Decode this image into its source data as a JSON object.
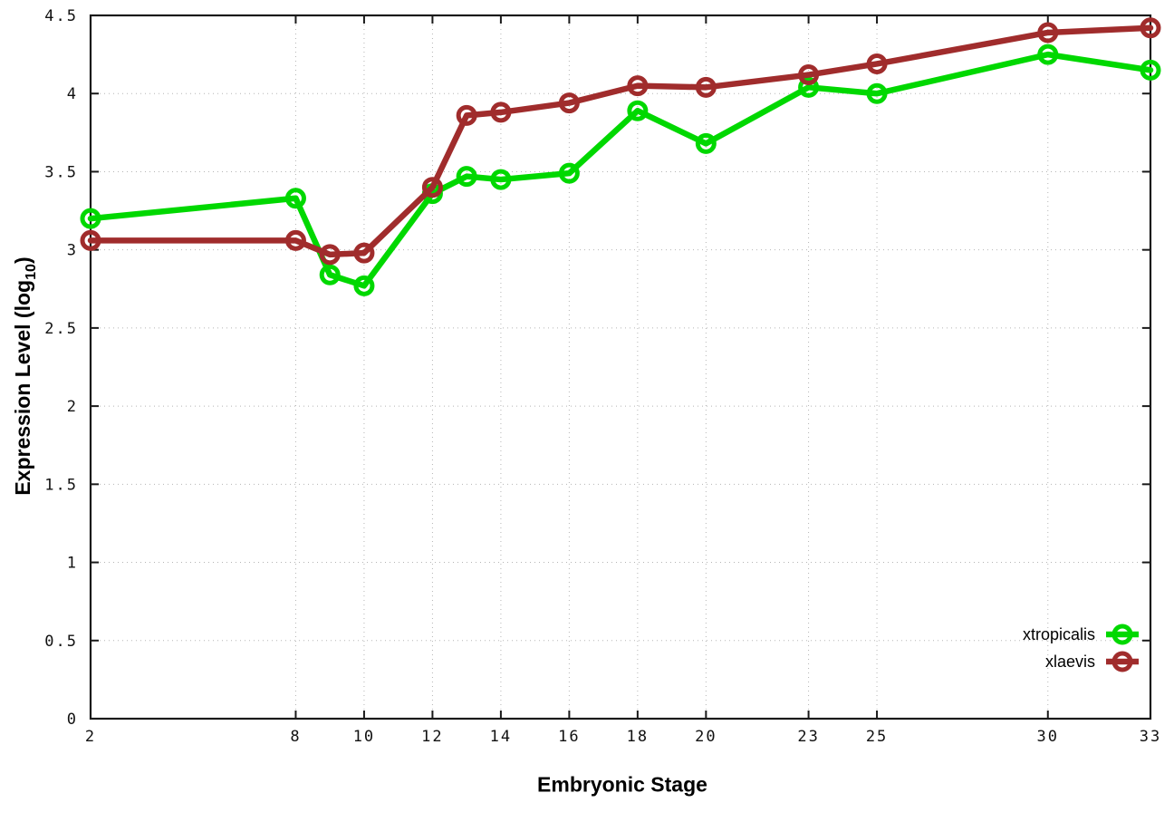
{
  "figure": {
    "background": "#ffffff",
    "axis_color": "#1a1a1a",
    "grid_color": "#b5b5b5"
  },
  "chart_data": {
    "type": "line",
    "title": "",
    "xlabel": "Embryonic Stage",
    "ylabel": "Expression Level (log10)",
    "ylabel_parts": {
      "pre": "Expression Level (log",
      "sub": "10",
      "post": ")"
    },
    "xlim": [
      2,
      33
    ],
    "ylim": [
      0,
      4.5
    ],
    "grid": true,
    "marker": "open-circle",
    "legend_position": "inside-bottom-right",
    "x": [
      2,
      8,
      9,
      10,
      12,
      13,
      14,
      16,
      18,
      20,
      23,
      25,
      30,
      33
    ],
    "xticks": [
      2,
      8,
      10,
      12,
      14,
      16,
      18,
      20,
      23,
      25,
      30,
      33
    ],
    "yticks": [
      0,
      0.5,
      1,
      1.5,
      2,
      2.5,
      3,
      3.5,
      4,
      4.5
    ],
    "series": [
      {
        "name": "xtropicalis",
        "color": "#00d800",
        "values": [
          3.2,
          3.33,
          2.84,
          2.77,
          3.36,
          3.47,
          3.45,
          3.49,
          3.89,
          3.68,
          4.04,
          4.0,
          4.25,
          4.15
        ]
      },
      {
        "name": "xlaevis",
        "color": "#a02c2c",
        "values": [
          3.06,
          3.06,
          2.97,
          2.98,
          3.4,
          3.86,
          3.88,
          3.94,
          4.05,
          4.04,
          4.12,
          4.19,
          4.39,
          4.42
        ]
      }
    ]
  }
}
